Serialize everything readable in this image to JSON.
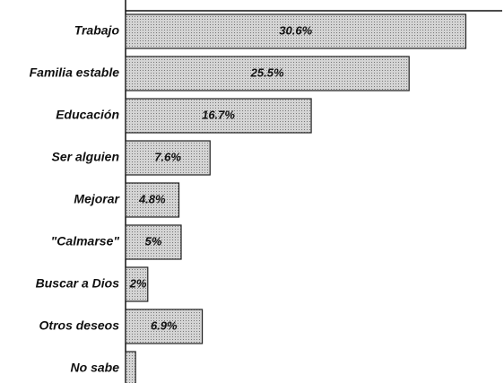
{
  "chart_data": {
    "type": "bar",
    "orientation": "horizontal",
    "categories": [
      "Trabajo",
      "Familia estable",
      "Educación",
      "Ser alguien",
      "Mejorar",
      "\"Calmarse\"",
      "Buscar a Dios",
      "Otros deseos",
      "No sabe"
    ],
    "values": [
      30.6,
      25.5,
      16.7,
      7.6,
      4.8,
      5,
      2,
      6.9,
      0.9
    ],
    "value_labels": [
      "30.6%",
      "25.5%",
      "16.7%",
      "7.6%",
      "4.8%",
      "5%",
      "2%",
      "6.9%",
      null
    ],
    "color": "#c4c4c4"
  }
}
